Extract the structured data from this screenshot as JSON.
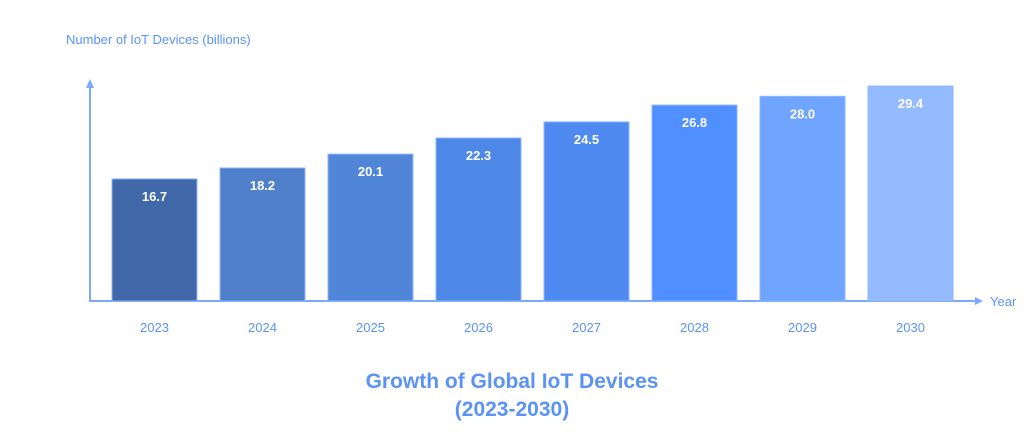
{
  "chart_data": {
    "type": "bar",
    "title": "Growth of Global IoT Devices",
    "subtitle": "(2023-2030)",
    "xlabel": "Year",
    "ylabel": "Number of IoT Devices (billions)",
    "categories": [
      "2023",
      "2024",
      "2025",
      "2026",
      "2027",
      "2028",
      "2029",
      "2030"
    ],
    "values": [
      16.7,
      18.2,
      20.1,
      22.3,
      24.5,
      26.8,
      28.0,
      29.4
    ],
    "value_labels": [
      "16.7",
      "18.2",
      "20.1",
      "22.3",
      "24.5",
      "26.8",
      "28.0",
      "29.4"
    ],
    "ylim": [
      0,
      30
    ],
    "grid": false,
    "bar_colors": [
      "#4169aa",
      "#5080ca",
      "#5185d8",
      "#4e88e6",
      "#4e8af0",
      "#4f8fff",
      "#6fa4ff",
      "#94baff"
    ],
    "axis_color": "#7aa8ff",
    "text_color": "#5b93f5"
  }
}
